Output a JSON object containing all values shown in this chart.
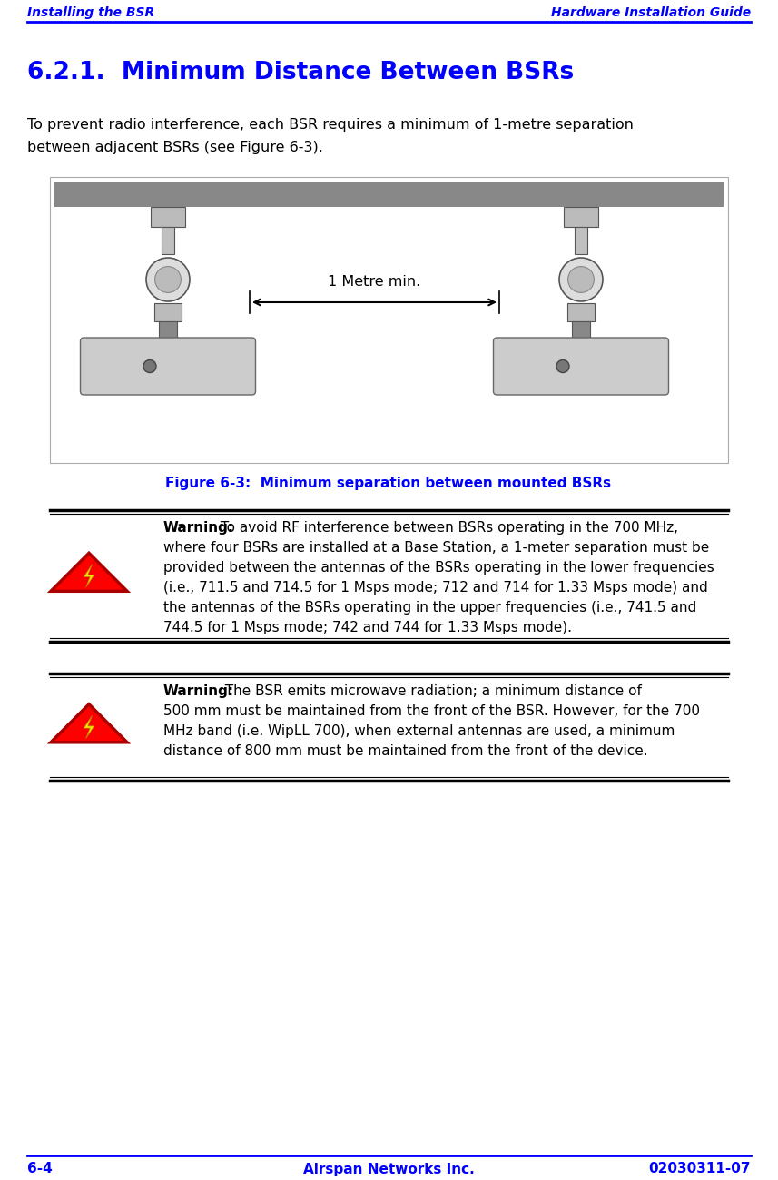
{
  "header_left": "Installing the BSR",
  "header_right": "Hardware Installation Guide",
  "header_color": "#0000FF",
  "title": "6.2.1.  Minimum Distance Between BSRs",
  "title_color": "#0000FF",
  "title_fontsize": 19,
  "body_text1_line1": "To prevent radio interference, each BSR requires a minimum of 1-metre separation",
  "body_text1_line2": "between adjacent BSRs (see Figure 6-3).",
  "figure_caption": "Figure 6-3:  Minimum separation between mounted BSRs",
  "figure_caption_color": "#0000FF",
  "arrow_label": "1 Metre min.",
  "warning1_bold": "Warning:",
  "warning1_rest": " To avoid RF interference between BSRs operating in the 700 MHz,\nwhere four BSRs are installed at a Base Station, a 1-meter separation must be\nprovided between the antennas of the BSRs operating in the lower frequencies\n(i.e., 711.5 and 714.5 for 1 Msps mode; 712 and 714 for 1.33 Msps mode) and\nthe antennas of the BSRs operating in the upper frequencies (i.e., 741.5 and\n744.5 for 1 Msps mode; 742 and 744 for 1.33 Msps mode).",
  "warning2_bold": "Warning:",
  "warning2_rest": "  The BSR emits microwave radiation; a minimum distance of\n500 mm must be maintained from the front of the BSR. However, for the 700\nMHz band (i.e. WipLL 700), when external antennas are used, a minimum\ndistance of 800 mm must be maintained from the front of the device.",
  "footer_left": "6-4",
  "footer_center": "Airspan Networks Inc.",
  "footer_right": "02030311-07",
  "footer_color": "#0000FF",
  "bg_color": "#FFFFFF",
  "body_fontsize": 11.5,
  "warning_fontsize": 11,
  "footer_fontsize": 11,
  "tri_fill": "#FF0000",
  "tri_edge": "#CC0000",
  "bolt_fill": "#FFE000"
}
